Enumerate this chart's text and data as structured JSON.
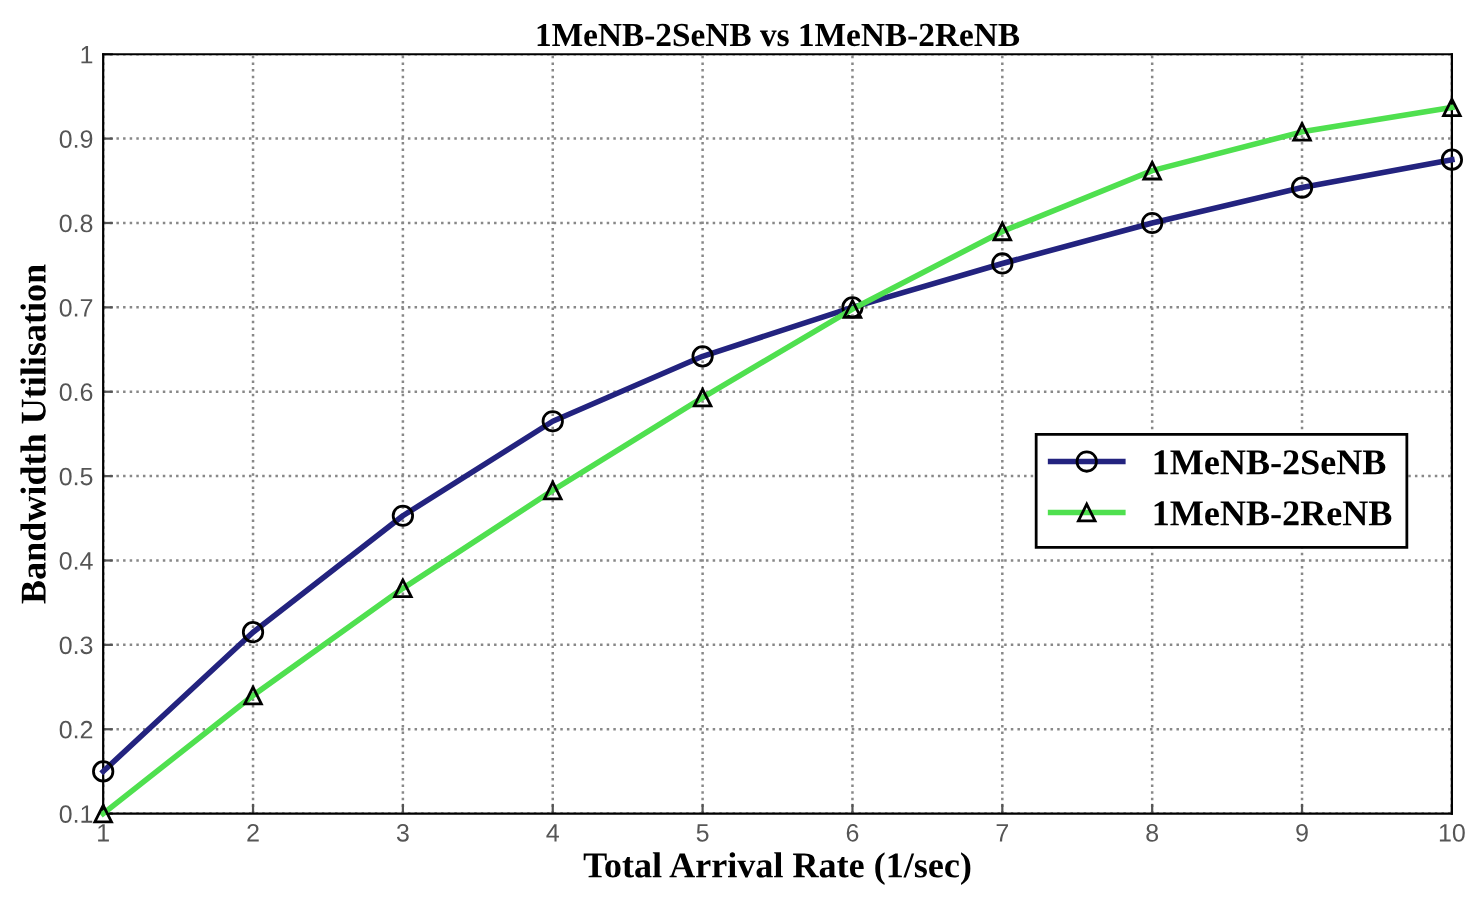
{
  "chart_data": {
    "type": "line",
    "title": "1MeNB-2SeNB vs 1MeNB-2ReNB",
    "xlabel": "Total Arrival Rate (1/sec)",
    "ylabel": "Bandwidth Utilisation",
    "x": [
      1,
      2,
      3,
      4,
      5,
      6,
      7,
      8,
      9,
      10
    ],
    "series": [
      {
        "name": "1MeNB-2SeNB",
        "color": "#23237f",
        "marker": "circle",
        "values": [
          0.15,
          0.315,
          0.453,
          0.565,
          0.642,
          0.7,
          0.752,
          0.8,
          0.842,
          0.875
        ]
      },
      {
        "name": "1MeNB-2ReNB",
        "color": "#4fe04f",
        "marker": "triangle",
        "values": [
          0.1,
          0.24,
          0.367,
          0.483,
          0.593,
          0.698,
          0.79,
          0.862,
          0.908,
          0.937
        ]
      }
    ],
    "xlim": [
      1,
      10
    ],
    "ylim": [
      0.1,
      1
    ],
    "xticks": [
      1,
      2,
      3,
      4,
      5,
      6,
      7,
      8,
      9,
      10
    ],
    "yticks": [
      0.1,
      0.2,
      0.3,
      0.4,
      0.5,
      0.6,
      0.7,
      0.8,
      0.9,
      1
    ],
    "grid": true,
    "legend": "center right",
    "line_style": "solid"
  }
}
